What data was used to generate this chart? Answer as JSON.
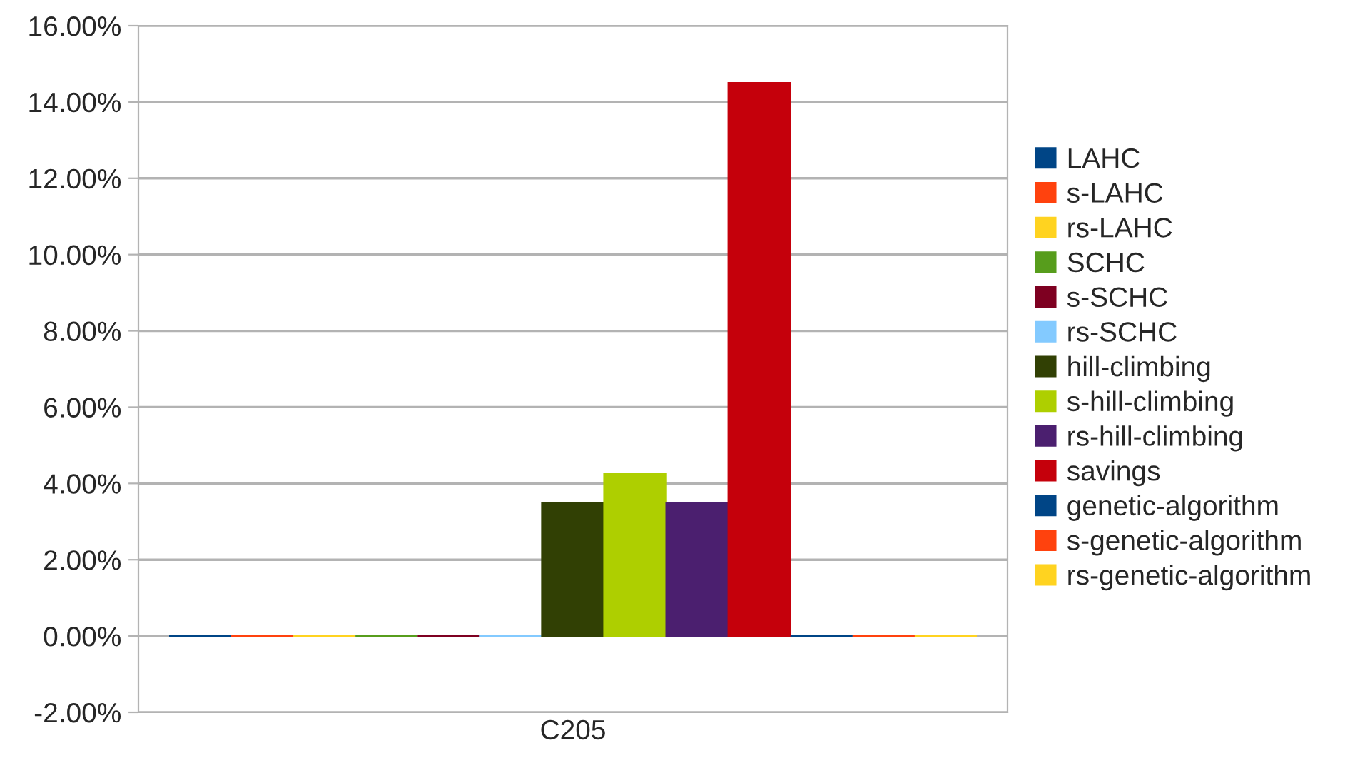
{
  "chart_data": {
    "type": "bar",
    "categories": [
      "C205"
    ],
    "series": [
      {
        "name": "LAHC",
        "color": "#004586",
        "values": [
          0
        ]
      },
      {
        "name": "s-LAHC",
        "color": "#ff420e",
        "values": [
          0
        ]
      },
      {
        "name": "rs-LAHC",
        "color": "#ffd320",
        "values": [
          0
        ]
      },
      {
        "name": "SCHC",
        "color": "#579d1c",
        "values": [
          0
        ]
      },
      {
        "name": "s-SCHC",
        "color": "#7e0021",
        "values": [
          0
        ]
      },
      {
        "name": "rs-SCHC",
        "color": "#83caff",
        "values": [
          0
        ]
      },
      {
        "name": "hill-climbing",
        "color": "#314004",
        "values": [
          3.5
        ]
      },
      {
        "name": "s-hill-climbing",
        "color": "#aecf00",
        "values": [
          4.25
        ]
      },
      {
        "name": "rs-hill-climbing",
        "color": "#4b1f6f",
        "values": [
          3.5
        ]
      },
      {
        "name": "savings",
        "color": "#c5000b",
        "values": [
          14.5
        ]
      },
      {
        "name": "genetic-algorithm",
        "color": "#004586",
        "values": [
          0
        ]
      },
      {
        "name": "s-genetic-algorithm",
        "color": "#ff420e",
        "values": [
          0
        ]
      },
      {
        "name": "rs-genetic-algorithm",
        "color": "#ffd320",
        "values": [
          0
        ]
      }
    ],
    "ylim": [
      -2,
      16
    ],
    "yticks": [
      {
        "value": -2,
        "label": "-2.00%"
      },
      {
        "value": 0,
        "label": "0.00%"
      },
      {
        "value": 2,
        "label": "2.00%"
      },
      {
        "value": 4,
        "label": "4.00%"
      },
      {
        "value": 6,
        "label": "6.00%"
      },
      {
        "value": 8,
        "label": "8.00%"
      },
      {
        "value": 10,
        "label": "10.00%"
      },
      {
        "value": 12,
        "label": "12.00%"
      },
      {
        "value": 14,
        "label": "14.00%"
      },
      {
        "value": 16,
        "label": "16.00%"
      }
    ],
    "grid": "y",
    "legend": "right"
  }
}
